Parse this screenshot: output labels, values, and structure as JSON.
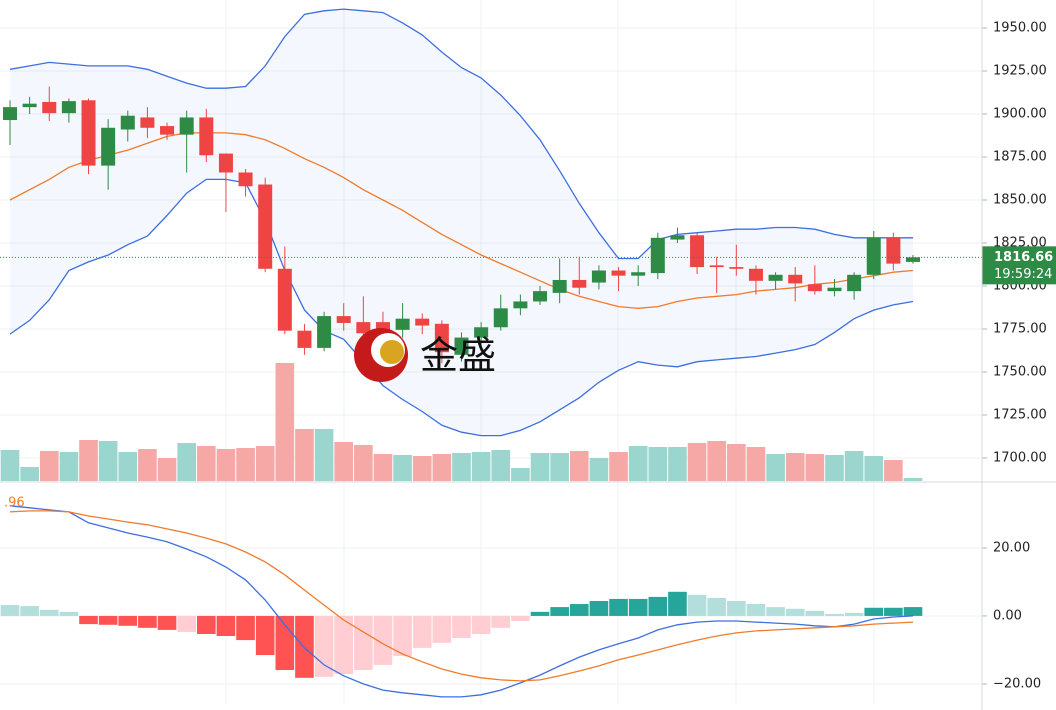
{
  "chart_data": [
    {
      "type": "candlestick",
      "open": [
        1896.5,
        1904,
        1907,
        1900.5,
        1908,
        1870,
        1891,
        1898,
        1893,
        1888,
        1898,
        1877,
        1866,
        1859,
        1810,
        1774,
        1764,
        1782.5,
        1779,
        1779,
        1774.5,
        1781,
        1778,
        1760,
        1770,
        1776,
        1787,
        1791,
        1796,
        1803.5,
        1802,
        1809,
        1806,
        1807.5,
        1827,
        1829.5,
        1812,
        1811,
        1810,
        1803,
        1806.5,
        1801,
        1797,
        1797,
        1806.5,
        1828,
        1814
      ],
      "high": [
        1908,
        1910,
        1916,
        1909,
        1909,
        1897,
        1902,
        1904,
        1895,
        1902,
        1903,
        1877,
        1868,
        1863,
        1823,
        1778,
        1785,
        1790,
        1794,
        1785,
        1790,
        1784,
        1780,
        1773,
        1779,
        1795,
        1795,
        1800,
        1816,
        1817,
        1812,
        1811,
        1812,
        1831,
        1834,
        1831,
        1817,
        1824,
        1812,
        1808,
        1811,
        1812,
        1804,
        1808,
        1832,
        1831,
        1818
      ],
      "low": [
        1882,
        1900,
        1896,
        1895,
        1865,
        1856,
        1884,
        1886,
        1885,
        1866,
        1872,
        1843,
        1852,
        1808,
        1772,
        1760,
        1762,
        1774,
        1768,
        1765,
        1770,
        1772,
        1755,
        1756,
        1765,
        1774,
        1783,
        1789,
        1790,
        1795,
        1798,
        1797,
        1800,
        1804,
        1825,
        1807,
        1796,
        1806,
        1795,
        1798,
        1791,
        1795,
        1794,
        1792,
        1804,
        1809,
        1813
      ],
      "close": [
        1904,
        1906,
        1900.5,
        1907.5,
        1870,
        1892,
        1899,
        1892,
        1888,
        1898,
        1876,
        1866,
        1858,
        1810,
        1774,
        1764,
        1782.5,
        1778.5,
        1772.5,
        1773,
        1781,
        1777,
        1761.5,
        1770,
        1776,
        1787,
        1791,
        1797,
        1803.5,
        1799,
        1809,
        1806,
        1808,
        1828,
        1829.5,
        1811,
        1811,
        1810,
        1803,
        1806.5,
        1801.5,
        1797,
        1799,
        1806.5,
        1828,
        1813,
        1816.66
      ],
      "up_color": "#2e8b45",
      "down_color": "#ef4444",
      "volume": [
        31,
        14,
        30,
        29,
        41,
        40,
        29,
        32,
        23,
        38,
        35,
        32,
        33,
        35,
        118,
        52,
        52,
        39,
        36,
        27,
        26,
        25,
        27,
        28,
        29,
        31,
        13,
        28,
        28,
        30,
        23,
        29,
        35,
        34,
        34,
        38,
        40,
        37,
        34,
        27,
        28,
        27,
        26,
        30,
        25,
        21,
        3
      ],
      "volume_up_color": "#9ad6cd",
      "volume_down_color": "#f6a8a6",
      "lines": [
        {
          "color": "#3d6fe0",
          "values": [
            1926,
            1928,
            1930,
            1929,
            1928,
            1928,
            1928,
            1926,
            1922,
            1918,
            1915,
            1915,
            1916,
            1928,
            1945,
            1958,
            1960,
            1961,
            1960,
            1959,
            1953,
            1946,
            1936,
            1927,
            1921,
            1911,
            1899,
            1885,
            1867,
            1848,
            1831,
            1816,
            1816,
            1827,
            1830,
            1831,
            1832,
            1833,
            1833,
            1834,
            1834,
            1833,
            1830,
            1828,
            1828,
            1828,
            1828
          ]
        },
        {
          "color": "#f07b2a",
          "values": [
            1850,
            1856,
            1862,
            1869,
            1873,
            1876,
            1879,
            1883,
            1887,
            1889,
            1889,
            1889,
            1888,
            1885,
            1880,
            1874,
            1869,
            1863,
            1856,
            1850,
            1844,
            1837,
            1830,
            1824,
            1818,
            1813,
            1808,
            1803,
            1798,
            1794,
            1791,
            1788,
            1787,
            1788,
            1791,
            1793,
            1794,
            1795,
            1797,
            1798,
            1799,
            1801,
            1802,
            1804,
            1806,
            1808,
            1809
          ]
        },
        {
          "color": "#3d6fe0",
          "values": [
            1772,
            1780,
            1792,
            1809,
            1814,
            1818,
            1824,
            1829,
            1841,
            1854,
            1862,
            1862,
            1860,
            1838,
            1809,
            1786,
            1774,
            1769,
            1756,
            1742,
            1734,
            1727,
            1719,
            1715,
            1713,
            1713,
            1716,
            1721,
            1728,
            1735,
            1744,
            1751,
            1756,
            1754,
            1753,
            1756,
            1757,
            1758,
            1759,
            1761,
            1763,
            1766,
            1773,
            1781,
            1786,
            1789,
            1791
          ]
        }
      ],
      "ylim": [
        1686.6,
        1966.3
      ],
      "yticks": [
        {
          "value": 1700,
          "label": "1700.00"
        },
        {
          "value": 1725,
          "label": "1725.00"
        },
        {
          "value": 1750,
          "label": "1750.00"
        },
        {
          "value": 1775,
          "label": "1775.00"
        },
        {
          "value": 1800,
          "label": "1800.00"
        },
        {
          "value": 1825,
          "label": "1825.00"
        },
        {
          "value": 1850,
          "label": "1850.00"
        },
        {
          "value": 1875,
          "label": "1875.00"
        },
        {
          "value": 1900,
          "label": "1900.00"
        },
        {
          "value": 1925,
          "label": "1925.00"
        },
        {
          "value": 1950,
          "label": "1950.00"
        }
      ],
      "grid": true,
      "last_price": 1816.66,
      "last_price_color": "#2e8b45",
      "timer": "19:59:24",
      "watermark": "金盛"
    },
    {
      "type": "macd",
      "histogram": [
        3.2,
        2.9,
        1.8,
        1.2,
        -2.4,
        -2.6,
        -2.9,
        -3.5,
        -4.1,
        -4.7,
        -5.3,
        -5.9,
        -7.1,
        -11.5,
        -15.9,
        -18.2,
        -17.9,
        -17.1,
        -15.9,
        -14.4,
        -11.8,
        -9.4,
        -7.9,
        -6.5,
        -5.3,
        -3.5,
        -1.5,
        1.2,
        2.6,
        3.5,
        4.4,
        5.0,
        5.0,
        5.6,
        7.1,
        6.2,
        5.3,
        4.4,
        3.5,
        2.6,
        2.1,
        1.5,
        0.6,
        0.9,
        2.4,
        2.4,
        2.6
      ],
      "histogram_colors": [
        "#b2dfdb",
        "#b2dfdb",
        "#b2dfdb",
        "#b2dfdb",
        "#ff5252",
        "#ff5252",
        "#ff5252",
        "#ff5252",
        "#ff5252",
        "#ffcdd2",
        "#ff5252",
        "#ff5252",
        "#ff5252",
        "#ff5252",
        "#ff5252",
        "#ff5252",
        "#ffcdd2",
        "#ffcdd2",
        "#ffcdd2",
        "#ffcdd2",
        "#ffcdd2",
        "#ffcdd2",
        "#ffcdd2",
        "#ffcdd2",
        "#ffcdd2",
        "#ffcdd2",
        "#ffcdd2",
        "#26a69a",
        "#26a69a",
        "#26a69a",
        "#26a69a",
        "#26a69a",
        "#26a69a",
        "#26a69a",
        "#26a69a",
        "#b2dfdb",
        "#b2dfdb",
        "#b2dfdb",
        "#b2dfdb",
        "#b2dfdb",
        "#b2dfdb",
        "#b2dfdb",
        "#b2dfdb",
        "#b2dfdb",
        "#26a69a",
        "#26a69a",
        "#26a69a"
      ],
      "lines": [
        {
          "color": "#3d6fe0",
          "values": [
            32.4,
            31.8,
            31.2,
            30.6,
            27.4,
            25.9,
            24.4,
            23.2,
            21.8,
            19.7,
            17.4,
            14.4,
            10.6,
            4.7,
            -2.6,
            -9.4,
            -14.4,
            -17.6,
            -20.0,
            -21.8,
            -22.6,
            -23.2,
            -23.8,
            -23.8,
            -23.2,
            -21.8,
            -19.7,
            -17.4,
            -14.7,
            -12.1,
            -10.0,
            -8.2,
            -6.5,
            -4.1,
            -2.6,
            -1.8,
            -1.5,
            -1.5,
            -1.8,
            -2.1,
            -2.4,
            -2.9,
            -3.2,
            -2.4,
            -0.9,
            -0.3,
            0.0
          ]
        },
        {
          "color": "#f07b2a",
          "values": [
            30.6,
            30.9,
            30.9,
            30.6,
            29.4,
            28.5,
            27.6,
            26.8,
            25.6,
            24.4,
            22.9,
            21.2,
            18.8,
            15.9,
            12.1,
            7.6,
            3.2,
            -1.2,
            -4.7,
            -8.2,
            -11.2,
            -13.5,
            -15.6,
            -17.1,
            -18.2,
            -18.8,
            -19.1,
            -18.8,
            -17.6,
            -16.2,
            -14.7,
            -12.9,
            -11.5,
            -10.0,
            -8.5,
            -7.1,
            -5.9,
            -5.0,
            -4.4,
            -4.1,
            -3.8,
            -3.5,
            -3.2,
            -2.9,
            -2.4,
            -2.1,
            -1.8
          ]
        }
      ],
      "ylim": [
        -25.9,
        39.1
      ],
      "yticks": [
        {
          "value": -20,
          "label": "−20.00"
        },
        {
          "value": 0,
          "label": "0.00"
        },
        {
          "value": 20,
          "label": "20.00"
        }
      ],
      "label": ".96",
      "label_color": "#f07b2a"
    }
  ]
}
